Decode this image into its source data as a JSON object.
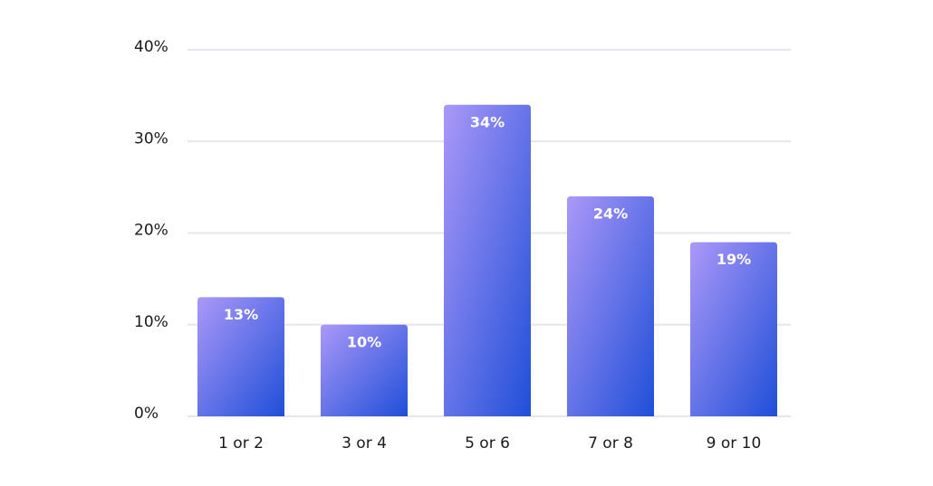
{
  "chart_data": {
    "type": "bar",
    "categories": [
      "1 or 2",
      "3 or 4",
      "5 or 6",
      "7 or 8",
      "9 or 10"
    ],
    "values": [
      13,
      10,
      34,
      24,
      19
    ],
    "value_labels": [
      "13%",
      "10%",
      "34%",
      "24%",
      "19%"
    ],
    "gradient": [
      "#ab98f8",
      "#1f4fd8"
    ],
    "ylim": [
      0,
      40
    ],
    "yticks": [
      {
        "value": 0,
        "label": "0%"
      },
      {
        "value": 10,
        "label": "10%"
      },
      {
        "value": 20,
        "label": "20%"
      },
      {
        "value": 30,
        "label": "30%"
      },
      {
        "value": 40,
        "label": "40%"
      }
    ],
    "grid": true
  }
}
